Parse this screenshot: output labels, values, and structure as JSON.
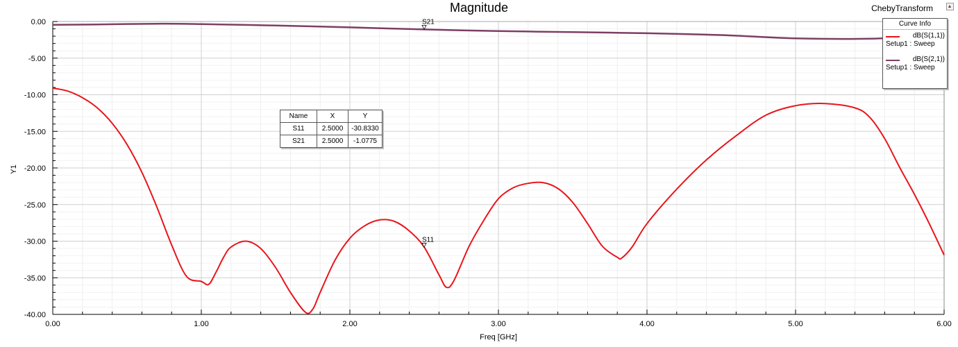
{
  "header": {
    "title": "Magnitude",
    "project_name": "ChebyTransform",
    "corner_icon": "hfss-logo-icon"
  },
  "legend": {
    "title": "Curve Info",
    "items": [
      {
        "name": "dB(S(1,1))",
        "sub": "Setup1 : Sweep",
        "color": "#e8151b"
      },
      {
        "name": "dB(S(2,1))",
        "sub": "Setup1 : Sweep",
        "color": "#7d3e63"
      }
    ]
  },
  "markers": {
    "headers": [
      "Name",
      "X",
      "Y"
    ],
    "rows": [
      {
        "name": "S11",
        "x": "2.5000",
        "y": "-30.8330"
      },
      {
        "name": "S21",
        "x": "2.5000",
        "y": "-1.0775"
      }
    ],
    "points": [
      {
        "label": "S11",
        "x": 2.5,
        "y": -30.833
      },
      {
        "label": "S21",
        "x": 2.5,
        "y": -1.0775
      }
    ]
  },
  "chart_data": {
    "type": "line",
    "title": "Magnitude",
    "xlabel": "Freq [GHz]",
    "ylabel": "Y1",
    "xlim": [
      0,
      6
    ],
    "ylim": [
      -40,
      0
    ],
    "xticks": [
      "0.00",
      "1.00",
      "2.00",
      "3.00",
      "4.00",
      "5.00",
      "6.00"
    ],
    "yticks": [
      "0.00",
      "-5.00",
      "-10.00",
      "-15.00",
      "-20.00",
      "-25.00",
      "-30.00",
      "-35.00",
      "-40.00"
    ],
    "grid": true,
    "legend_position": "top-right",
    "series": [
      {
        "name": "dB(S(1,1))",
        "color": "#e8151b",
        "x": [
          0,
          0.1,
          0.2,
          0.3,
          0.4,
          0.5,
          0.6,
          0.7,
          0.8,
          0.9,
          1.0,
          1.05,
          1.1,
          1.15,
          1.2,
          1.3,
          1.4,
          1.5,
          1.6,
          1.7,
          1.75,
          1.8,
          1.9,
          2.0,
          2.1,
          2.2,
          2.3,
          2.4,
          2.5,
          2.6,
          2.65,
          2.7,
          2.8,
          2.9,
          3.0,
          3.1,
          3.2,
          3.3,
          3.4,
          3.5,
          3.6,
          3.7,
          3.8,
          3.83,
          3.9,
          4.0,
          4.2,
          4.4,
          4.6,
          4.8,
          5.0,
          5.2,
          5.4,
          5.5,
          5.6,
          5.7,
          5.8,
          5.9,
          6.0
        ],
        "y": [
          -9.1,
          -9.5,
          -10.4,
          -11.8,
          -13.9,
          -16.8,
          -20.6,
          -25.3,
          -30.5,
          -34.8,
          -35.5,
          -35.9,
          -34.2,
          -32.2,
          -30.8,
          -30.0,
          -31.0,
          -33.6,
          -37.0,
          -39.7,
          -39.3,
          -37.0,
          -32.6,
          -29.6,
          -27.9,
          -27.1,
          -27.3,
          -28.6,
          -30.8,
          -34.6,
          -36.3,
          -35.4,
          -30.8,
          -27.2,
          -24.2,
          -22.7,
          -22.1,
          -22.0,
          -22.8,
          -24.7,
          -27.6,
          -30.7,
          -32.2,
          -32.3,
          -30.8,
          -27.6,
          -22.9,
          -18.9,
          -15.6,
          -12.8,
          -11.5,
          -11.2,
          -11.8,
          -13.1,
          -16.0,
          -19.9,
          -23.6,
          -27.6,
          -31.9
        ]
      },
      {
        "name": "dB(S(2,1))",
        "color": "#7d3e63",
        "x": [
          0,
          0.3,
          0.7,
          1.0,
          1.5,
          2.0,
          2.5,
          3.0,
          3.5,
          4.0,
          4.5,
          5.0,
          5.5,
          6.0
        ],
        "y": [
          -0.45,
          -0.4,
          -0.3,
          -0.35,
          -0.55,
          -0.8,
          -1.08,
          -1.3,
          -1.45,
          -1.6,
          -1.85,
          -2.3,
          -2.35,
          -1.9
        ]
      }
    ]
  }
}
